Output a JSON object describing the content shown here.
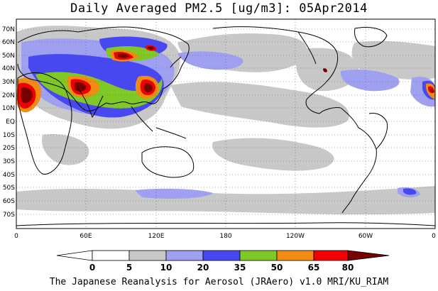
{
  "title": "Daily Averaged PM2.5 [ug/m3]: 05Apr2014",
  "lat_labels": [
    "70N",
    "60N",
    "50N",
    "40N",
    "30N",
    "20N",
    "10N",
    "EQ",
    "10S",
    "20S",
    "30S",
    "40S",
    "50S",
    "60S",
    "70S"
  ],
  "lon_labels": [
    "0",
    "60E",
    "120E",
    "180",
    "120W",
    "60W",
    "0"
  ],
  "colorbar": {
    "levels": [
      "0",
      "5",
      "10",
      "20",
      "35",
      "50",
      "65",
      "80"
    ],
    "colors": [
      "#ffffff",
      "#c8c8c8",
      "#a0a0f0",
      "#4848f0",
      "#80c828",
      "#f08c14",
      "#f00000",
      "#780000"
    ]
  },
  "credit": "The Japanese Reanalysis for Aerosol (JRAero) v1.0 MRI/KU_RIAM"
}
